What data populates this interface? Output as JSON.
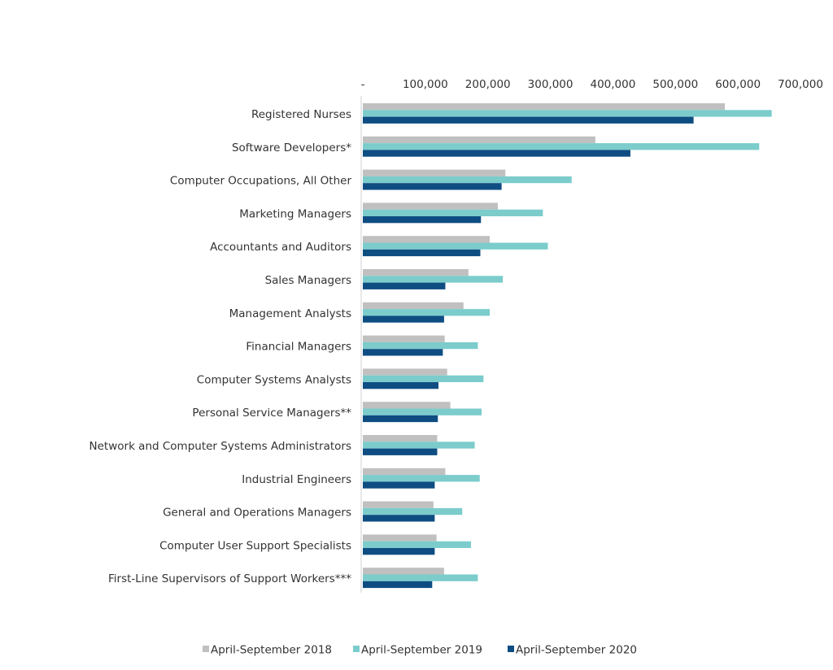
{
  "chart_data": {
    "type": "bar",
    "orientation": "horizontal",
    "title": "",
    "xlabel": "",
    "ylabel": "",
    "xlim": [
      0,
      700000
    ],
    "x_ticks": [
      0,
      100000,
      200000,
      300000,
      400000,
      500000,
      600000,
      700000
    ],
    "x_tick_labels": [
      "-",
      "100,000",
      "200,000",
      "300,000",
      "400,000",
      "500,000",
      "600,000",
      "700,000"
    ],
    "grid": false,
    "legend_position": "bottom",
    "categories": [
      "Registered Nurses",
      "Software Developers*",
      "Computer Occupations, All Other",
      "Marketing Managers",
      "Accountants and Auditors",
      "Sales Managers",
      "Management Analysts",
      "Financial Managers",
      "Computer Systems Analysts",
      "Personal Service Managers**",
      "Network and Computer Systems Administrators",
      "Industrial Engineers",
      "General and Operations Managers",
      "Computer User Support Specialists",
      "First-Line Supervisors of Support Workers***"
    ],
    "series": [
      {
        "name": "April-September 2018",
        "color": "#c0c0c0",
        "values": [
          579000,
          372000,
          228000,
          216000,
          203000,
          169000,
          161000,
          131000,
          135000,
          140000,
          119000,
          132000,
          113000,
          118000,
          130000
        ]
      },
      {
        "name": "April-September 2019",
        "color": "#7ccccc",
        "values": [
          654000,
          634000,
          334000,
          288000,
          296000,
          224000,
          203000,
          184000,
          193000,
          190000,
          179000,
          187000,
          159000,
          173000,
          184000
        ]
      },
      {
        "name": "April-September 2020",
        "color": "#0e4d82",
        "values": [
          529000,
          428000,
          222000,
          189000,
          188000,
          132000,
          130000,
          128000,
          121000,
          120000,
          119000,
          115000,
          115000,
          115000,
          111000
        ]
      }
    ]
  }
}
